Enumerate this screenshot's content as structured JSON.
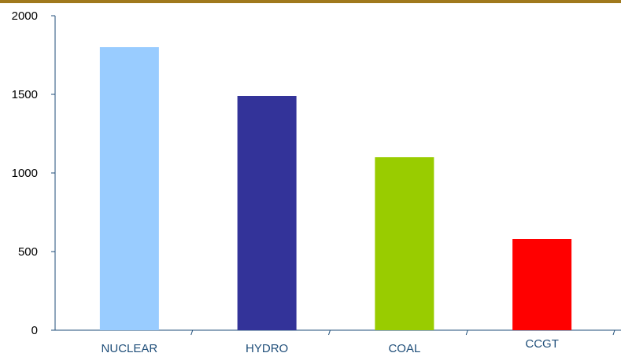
{
  "colors": {
    "top_bar": "#a0791d",
    "axis": "#1f4e79",
    "ytick_text": "#000000",
    "xtick_text": "#1f4e79"
  },
  "chart_data": {
    "type": "bar",
    "title": "",
    "xlabel": "",
    "ylabel": "",
    "categories": [
      "NUCLEAR",
      "HYDRO",
      "COAL",
      "CCGT"
    ],
    "values": [
      1800,
      1490,
      1100,
      580
    ],
    "bar_colors": [
      "#99ccff",
      "#333399",
      "#99cc00",
      "#ff0000"
    ],
    "ylim": [
      0,
      2000
    ],
    "yticks": [
      "0",
      "500",
      "1000",
      "1500",
      "2000"
    ],
    "grid": false,
    "legend": "none"
  }
}
